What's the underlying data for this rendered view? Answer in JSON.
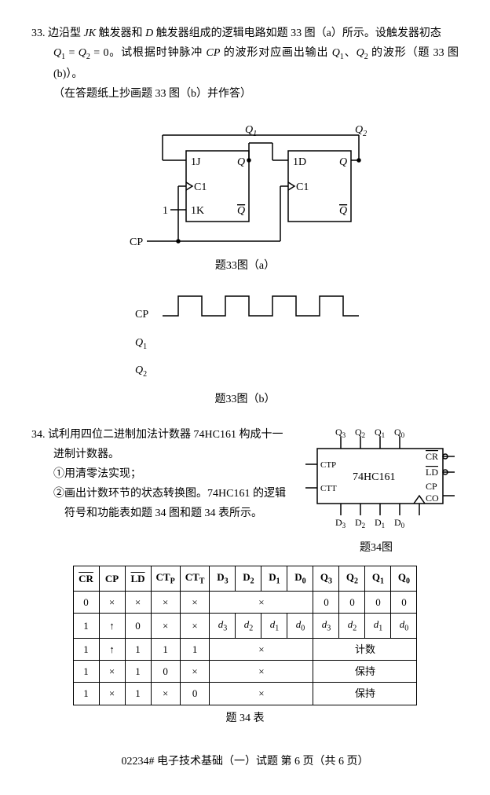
{
  "q33": {
    "number": "33.",
    "line1_a": "边沿型 ",
    "line1_jk": "JK",
    "line1_b": " 触发器和 ",
    "line1_d": "D",
    "line1_c": " 触发器组成的逻辑电路如题 33 图（a）所示。设触发器初态",
    "line2_a": "Q",
    "line2_b": " = ",
    "line2_c": "Q",
    "line2_d": " = 0。试根据时钟脉冲 ",
    "line2_cp": "CP",
    "line2_e": " 的波形对应画出输出 ",
    "line2_f": "、",
    "line2_g": " 的波形（题 33 图(b)）。",
    "line3": "（在答题纸上抄画题 33 图（b）并作答）",
    "fig_a_caption": "题33图（a）",
    "fig_b_caption": "题33图（b）",
    "circuit": {
      "labels": {
        "Q1": "Q",
        "Q1sub": "1",
        "Q2": "Q",
        "Q2sub": "2",
        "J": "1J",
        "C1": "C1",
        "K": "1K",
        "D": "1D",
        "C1b": "C1",
        "Q": "Q",
        "Qbar": "Q",
        "one": "1",
        "CP": "CP"
      },
      "stroke": "#000000"
    },
    "timing": {
      "CP": "CP",
      "Q1": "Q",
      "Q2": "Q",
      "stroke": "#000000"
    }
  },
  "q34": {
    "number": "34.",
    "line1": "试利用四位二进制加法计数器 74HC161 构成十一",
    "line2": "进制计数器。",
    "line3": "①用清零法实现；",
    "line4": "②画出计数环节的状态转换图。74HC161 的逻辑",
    "line5": "符号和功能表如题 34 图和题 34 表所示。",
    "fig_caption": "题34图",
    "table_caption": "题 34 表",
    "chip": {
      "name": "74HC161",
      "pins_top": [
        "Q",
        "Q",
        "Q",
        "Q"
      ],
      "pins_top_sub": [
        "3",
        "2",
        "1",
        "0"
      ],
      "pins_bot": [
        "D",
        "D",
        "D",
        "D"
      ],
      "pins_bot_sub": [
        "3",
        "2",
        "1",
        "0"
      ],
      "CTP": "CTP",
      "CTT": "CTT",
      "CR": "CR",
      "LD": "LD",
      "CP": "CP",
      "CO": "CO",
      "stroke": "#000000"
    },
    "table": {
      "headers": [
        "CR",
        "CP",
        "LD",
        "CTP",
        "CTT",
        "D3",
        "D2",
        "D1",
        "D0",
        "Q3",
        "Q2",
        "Q1",
        "Q0"
      ],
      "header_overline": [
        true,
        false,
        true,
        false,
        false,
        false,
        false,
        false,
        false,
        false,
        false,
        false,
        false
      ],
      "header_sub": [
        "",
        "",
        "",
        "P",
        "T",
        "3",
        "2",
        "1",
        "0",
        "3",
        "2",
        "1",
        "0"
      ],
      "header_main": [
        "CR",
        "CP",
        "LD",
        "CT",
        "CT",
        "D",
        "D",
        "D",
        "D",
        "Q",
        "Q",
        "Q",
        "Q"
      ],
      "rows": [
        {
          "cells": [
            "0",
            "×",
            "×",
            "×",
            "×"
          ],
          "d_merge": "×",
          "q_cells": [
            "0",
            "0",
            "0",
            "0"
          ]
        },
        {
          "cells": [
            "1",
            "↑",
            "0",
            "×",
            "×"
          ],
          "d_cells": [
            "d",
            "d",
            "d",
            "d"
          ],
          "d_sub": [
            "3",
            "2",
            "1",
            "0"
          ],
          "q_cells_d": [
            "d",
            "d",
            "d",
            "d"
          ],
          "q_sub": [
            "3",
            "2",
            "1",
            "0"
          ]
        },
        {
          "cells": [
            "1",
            "↑",
            "1",
            "1",
            "1"
          ],
          "d_merge": "×",
          "q_merge": "计数"
        },
        {
          "cells": [
            "1",
            "×",
            "1",
            "0",
            "×"
          ],
          "d_merge": "×",
          "q_merge": "保持"
        },
        {
          "cells": [
            "1",
            "×",
            "1",
            "×",
            "0"
          ],
          "d_merge": "×",
          "q_merge": "保持"
        }
      ]
    }
  },
  "footer": "02234# 电子技术基础（一）试题 第 6 页（共 6 页）"
}
